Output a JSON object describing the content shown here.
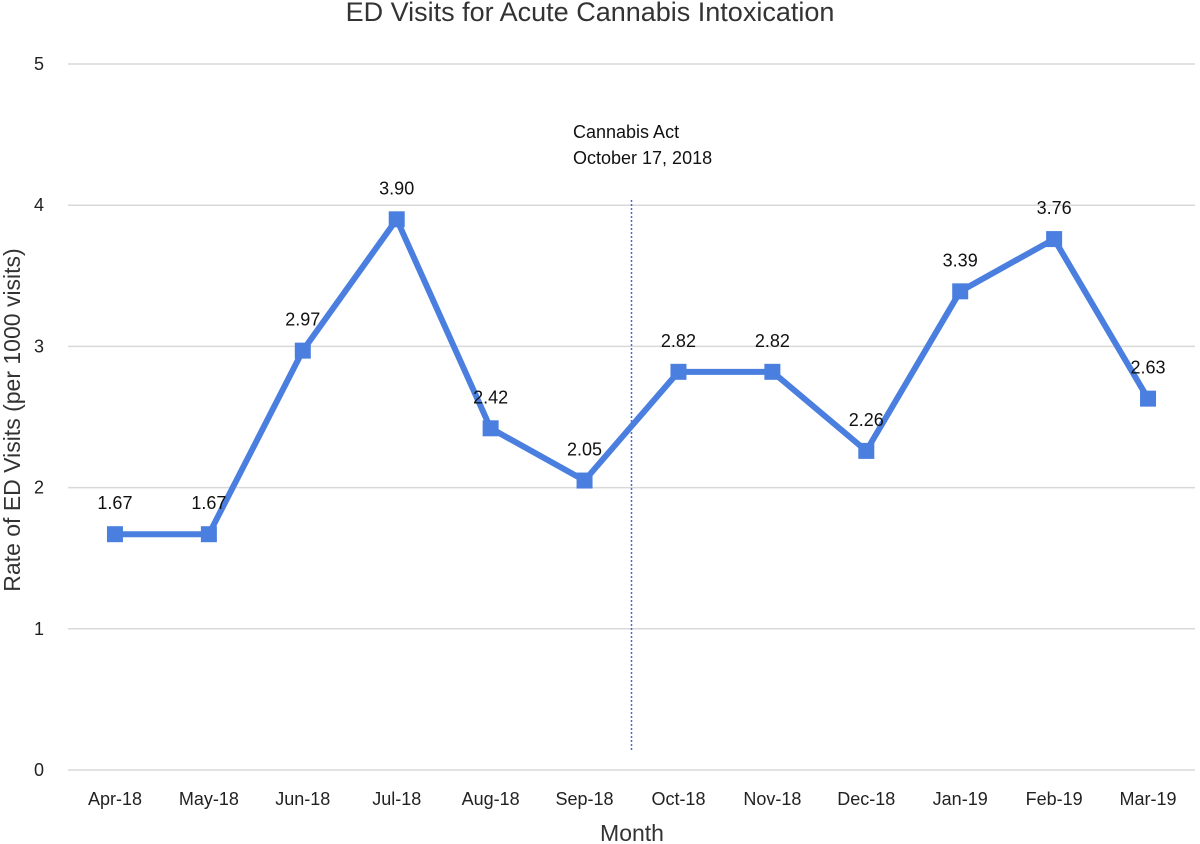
{
  "chart_data": {
    "type": "line",
    "title": "ED Visits for Acute Cannabis Intoxication",
    "xlabel": "Month",
    "ylabel": "Rate of ED Visits (per 1000 visits)",
    "ylim": [
      0,
      5
    ],
    "yticks": [
      0,
      1,
      2,
      3,
      4,
      5
    ],
    "grid": true,
    "legend": "none",
    "categories": [
      "Apr-18",
      "May-18",
      "Jun-18",
      "Jul-18",
      "Aug-18",
      "Sep-18",
      "Oct-18",
      "Nov-18",
      "Dec-18",
      "Jan-19",
      "Feb-19",
      "Mar-19"
    ],
    "series": [
      {
        "name": "Rate of ED Visits",
        "color": "#4a7fe0",
        "values": [
          1.67,
          1.67,
          2.97,
          3.9,
          2.42,
          2.05,
          2.82,
          2.82,
          2.26,
          3.39,
          3.76,
          2.63
        ],
        "labels": [
          "1.67",
          "1.67",
          "2.97",
          "3.90",
          "2.42",
          "2.05",
          "2.82",
          "2.82",
          "2.26",
          "3.39",
          "3.76",
          "2.63"
        ]
      }
    ],
    "annotation": {
      "line1": "Cannabis Act",
      "line2": "October 17, 2018",
      "between": [
        "Sep-18",
        "Oct-18"
      ],
      "color": "#3b6fd6"
    }
  }
}
